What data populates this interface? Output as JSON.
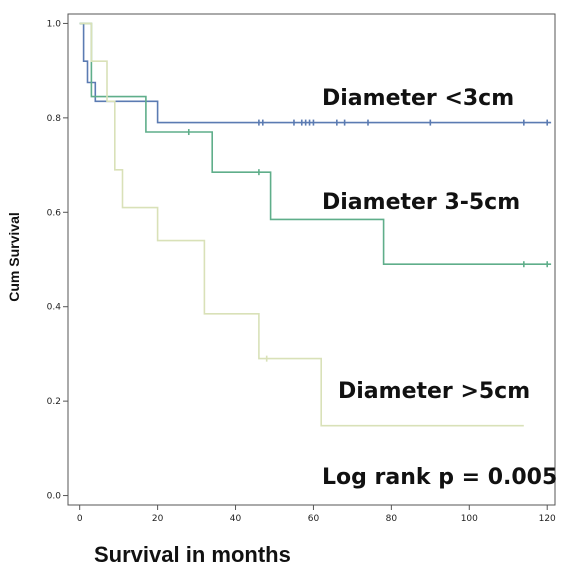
{
  "chart_data": {
    "type": "line",
    "subtype": "kaplan-meier step",
    "xlabel": "Survival in months",
    "ylabel": "Cum Survival",
    "xlim": [
      -3,
      122
    ],
    "ylim": [
      -0.02,
      1.02
    ],
    "x_ticks": [
      0,
      20,
      40,
      60,
      80,
      100,
      120
    ],
    "x_tick_labels": [
      "0",
      "20",
      "40",
      "60",
      "80",
      "100",
      "120"
    ],
    "y_ticks": [
      0.0,
      0.2,
      0.4,
      0.6,
      0.8,
      1.0
    ],
    "y_tick_labels": [
      "0.0",
      "0.2",
      "0.4",
      "0.6",
      "0.8",
      "1.0"
    ],
    "grid": false,
    "annotations": [
      "Diameter <3cm",
      "Diameter 3-5cm",
      "Diameter >5cm",
      "Log rank p = 0.005"
    ],
    "series": [
      {
        "name": "Diameter <3cm",
        "color": "#5b7bb2",
        "steps": [
          [
            0,
            1.0
          ],
          [
            1,
            0.92
          ],
          [
            2,
            0.875
          ],
          [
            4,
            0.835
          ],
          [
            20,
            0.79
          ],
          [
            121,
            0.79
          ]
        ],
        "censored": [
          [
            46,
            0.79
          ],
          [
            47,
            0.79
          ],
          [
            55,
            0.79
          ],
          [
            57,
            0.79
          ],
          [
            58,
            0.79
          ],
          [
            59,
            0.79
          ],
          [
            60,
            0.79
          ],
          [
            66,
            0.79
          ],
          [
            68,
            0.79
          ],
          [
            74,
            0.79
          ],
          [
            90,
            0.79
          ],
          [
            114,
            0.79
          ],
          [
            120,
            0.79
          ]
        ]
      },
      {
        "name": "Diameter 3-5cm",
        "color": "#5fae8a",
        "steps": [
          [
            0,
            1.0
          ],
          [
            3,
            0.845
          ],
          [
            17,
            0.77
          ],
          [
            34,
            0.685
          ],
          [
            49,
            0.585
          ],
          [
            78,
            0.49
          ],
          [
            121,
            0.49
          ]
        ],
        "censored": [
          [
            28,
            0.77
          ],
          [
            46,
            0.685
          ],
          [
            114,
            0.49
          ],
          [
            120,
            0.49
          ]
        ]
      },
      {
        "name": "Diameter >5cm",
        "color": "#d9e1b8",
        "steps": [
          [
            0,
            1.0
          ],
          [
            3,
            0.92
          ],
          [
            7,
            0.835
          ],
          [
            9,
            0.69
          ],
          [
            11,
            0.61
          ],
          [
            20,
            0.54
          ],
          [
            32,
            0.385
          ],
          [
            46,
            0.29
          ],
          [
            62,
            0.148
          ],
          [
            114,
            0.148
          ]
        ],
        "censored": [
          [
            48,
            0.29
          ]
        ]
      }
    ]
  }
}
